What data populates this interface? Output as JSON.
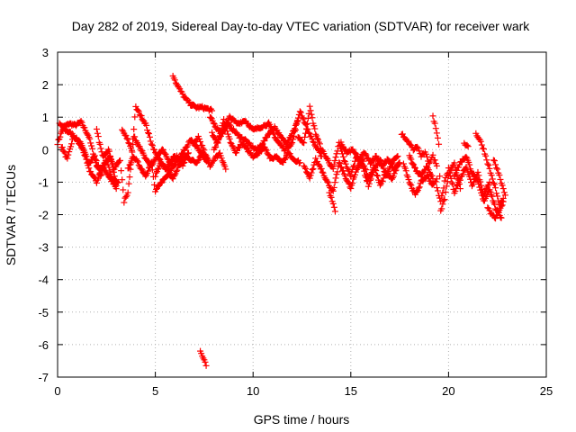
{
  "chart_data": {
    "type": "scatter",
    "title": "Day 282 of 2019, Sidereal Day-to-day VTEC variation (SDTVAR) for receiver wark",
    "xlabel": "GPS time / hours",
    "ylabel": "SDTVAR / TECUs",
    "xlim": [
      0,
      25
    ],
    "ylim": [
      -7,
      3
    ],
    "xticks": [
      "0",
      "5",
      "10",
      "15",
      "20",
      "25"
    ],
    "yticks": [
      "3",
      "2",
      "1",
      "0",
      "-1",
      "-2",
      "-3",
      "-4",
      "-5",
      "-6",
      "-7"
    ],
    "grid": true,
    "marker": "+",
    "series_color": "#ff0000",
    "segments": [
      {
        "x": [
          0.0,
          0.3,
          0.6,
          0.9,
          1.2,
          1.6,
          2.0,
          2.4,
          2.8,
          3.0
        ],
        "y": [
          0.2,
          0.7,
          0.8,
          0.75,
          0.85,
          0.4,
          -0.5,
          -0.6,
          -1.0,
          -1.2
        ]
      },
      {
        "x": [
          0.1,
          0.4,
          0.7,
          1.0,
          1.3,
          1.6,
          1.9,
          2.2,
          2.5,
          2.8,
          3.1
        ],
        "y": [
          0.8,
          0.6,
          0.5,
          0.3,
          0.0,
          -0.4,
          -0.2,
          -0.8,
          -0.3,
          -0.9,
          -1.0
        ]
      },
      {
        "x": [
          0.2,
          0.5,
          0.8,
          1.2,
          1.6,
          2.0,
          2.3,
          2.7,
          3.0
        ],
        "y": [
          0.1,
          -0.3,
          0.4,
          0.2,
          -0.6,
          -1.0,
          -0.5,
          -0.2,
          -1.1
        ]
      },
      {
        "x": [
          2.0,
          2.3,
          2.6,
          2.9,
          3.2,
          3.4,
          3.6,
          3.9,
          4.2,
          4.5,
          4.8,
          5.1,
          5.4,
          5.7,
          6.0
        ],
        "y": [
          0.6,
          -0.2,
          0.0,
          -0.6,
          -0.3,
          -1.6,
          -1.3,
          0.4,
          0.1,
          -0.3,
          -0.5,
          -0.2,
          0.0,
          -0.4,
          -0.2
        ]
      },
      {
        "x": [
          3.3,
          3.5,
          3.8,
          4.0,
          4.2,
          4.5,
          4.8,
          5.0,
          5.2,
          5.5,
          5.8,
          6.1,
          6.4,
          6.7
        ],
        "y": [
          0.6,
          0.4,
          0.0,
          1.3,
          1.1,
          0.8,
          0.2,
          -0.1,
          -0.3,
          -0.6,
          -0.4,
          -0.2,
          -0.5,
          -0.1
        ]
      },
      {
        "x": [
          3.6,
          3.9,
          4.2,
          4.5,
          4.8,
          5.0,
          5.3,
          5.6,
          5.9,
          6.2,
          6.5,
          6.8,
          7.1,
          7.4,
          7.7
        ],
        "y": [
          -0.6,
          -0.2,
          -0.5,
          -0.8,
          -0.4,
          -1.3,
          -1.0,
          -0.8,
          -0.5,
          -0.3,
          0.0,
          0.3,
          0.1,
          -0.2,
          -0.4
        ]
      },
      {
        "x": [
          5.0,
          5.3,
          5.6,
          5.9,
          6.2,
          6.5,
          6.8,
          7.1,
          7.4,
          7.7
        ],
        "y": [
          -0.8,
          -0.4,
          -0.6,
          -0.9,
          -0.5,
          -0.2,
          -0.3,
          -0.4,
          -0.1,
          -0.3
        ]
      },
      {
        "x": [
          5.9,
          6.1,
          6.3,
          6.5,
          6.8,
          7.1,
          7.4,
          7.7,
          7.9
        ],
        "y": [
          2.3,
          2.0,
          1.8,
          1.6,
          1.4,
          1.3,
          1.3,
          1.25,
          1.2
        ]
      },
      {
        "x": [
          7.0,
          7.2,
          7.4,
          7.6,
          7.8,
          8.0,
          8.3,
          8.6
        ],
        "y": [
          0.2,
          0.4,
          0.1,
          -0.2,
          -0.5,
          -0.3,
          -0.1,
          -0.6
        ]
      },
      {
        "x": [
          7.3,
          7.4,
          7.5,
          7.6
        ],
        "y": [
          -6.2,
          -6.35,
          -6.5,
          -6.65
        ]
      },
      {
        "x": [
          7.8,
          8.1,
          8.4,
          8.7,
          9.0,
          9.3,
          9.6,
          9.9,
          10.2,
          10.5,
          10.8,
          11.1,
          11.4,
          11.7,
          12.0,
          12.3
        ],
        "y": [
          1.0,
          0.7,
          0.5,
          0.8,
          0.6,
          0.4,
          0.3,
          0.1,
          0.0,
          0.2,
          0.5,
          0.7,
          0.4,
          0.2,
          0.5,
          0.9
        ]
      },
      {
        "x": [
          7.9,
          8.2,
          8.5,
          8.8,
          9.1,
          9.4,
          9.7,
          10.0,
          10.3,
          10.6,
          10.9,
          11.2,
          11.5,
          11.8,
          12.1,
          12.4
        ],
        "y": [
          0.5,
          0.2,
          0.9,
          0.3,
          -0.1,
          0.2,
          0.0,
          -0.2,
          -0.1,
          0.1,
          -0.3,
          -0.2,
          -0.4,
          -0.1,
          -0.3,
          -0.4
        ]
      },
      {
        "x": [
          8.0,
          8.4,
          8.8,
          9.2,
          9.6,
          10.0,
          10.4,
          10.8,
          11.2,
          11.6,
          12.0,
          12.4,
          12.8,
          13.2,
          13.5
        ],
        "y": [
          0.0,
          0.5,
          1.0,
          0.8,
          0.9,
          0.6,
          0.7,
          0.8,
          0.3,
          0.0,
          0.2,
          1.2,
          0.6,
          0.1,
          -0.2
        ]
      },
      {
        "x": [
          12.3,
          12.6,
          12.9,
          13.2,
          13.5,
          13.8,
          14.1,
          14.4,
          14.7,
          15.0,
          15.3,
          15.6,
          15.9,
          16.2,
          16.5,
          16.8,
          17.1,
          17.4
        ],
        "y": [
          0.4,
          0.2,
          1.3,
          0.5,
          0.0,
          -0.3,
          -0.6,
          0.2,
          -0.4,
          -0.8,
          -0.2,
          -0.5,
          -1.1,
          -0.6,
          -0.3,
          -0.8,
          -0.4,
          -0.2
        ]
      },
      {
        "x": [
          12.6,
          12.9,
          13.2,
          13.5,
          13.8,
          14.1,
          14.4,
          14.7,
          15.0,
          15.3,
          15.6,
          15.9,
          16.2,
          16.5,
          16.8,
          17.1,
          17.4
        ],
        "y": [
          -0.5,
          -0.9,
          -0.3,
          -0.6,
          -1.0,
          -1.3,
          -0.4,
          -0.8,
          -1.2,
          -0.6,
          -0.3,
          -0.9,
          -0.5,
          -1.1,
          -0.7,
          -0.9,
          -0.5
        ]
      },
      {
        "x": [
          13.9,
          14.0,
          14.1,
          14.2
        ],
        "y": [
          -1.3,
          -1.5,
          -1.7,
          -1.9
        ]
      },
      {
        "x": [
          14.5,
          14.8,
          15.1,
          15.4,
          15.7,
          16.0,
          16.3,
          16.6,
          16.9,
          17.2,
          17.5
        ],
        "y": [
          0.2,
          -0.1,
          0.0,
          -0.3,
          -0.1,
          -0.4,
          -0.2,
          -0.5,
          -0.3,
          -0.6,
          -0.4
        ]
      },
      {
        "x": [
          17.6,
          17.8,
          18.0,
          18.2,
          18.4,
          18.6,
          18.8,
          19.0,
          19.2,
          19.4
        ],
        "y": [
          0.5,
          0.3,
          0.2,
          0.0,
          0.1,
          -0.2,
          -0.1,
          -0.4,
          -0.2,
          -0.5
        ]
      },
      {
        "x": [
          17.7,
          18.0,
          18.3,
          18.6,
          18.9,
          19.2,
          19.4
        ],
        "y": [
          -0.4,
          -1.0,
          -1.4,
          -1.0,
          -0.8,
          -1.1,
          -0.9
        ]
      },
      {
        "x": [
          18.0,
          18.3,
          18.6,
          18.9,
          19.2
        ],
        "y": [
          -0.2,
          -0.6,
          -0.8,
          -0.5,
          -0.9
        ]
      },
      {
        "x": [
          19.2,
          19.3,
          19.4,
          19.5,
          19.6,
          19.8,
          20.0,
          20.3,
          20.6
        ],
        "y": [
          1.0,
          0.8,
          0.5,
          0.2,
          -1.9,
          -1.5,
          -0.8,
          -0.4,
          -1.2
        ]
      },
      {
        "x": [
          19.4,
          19.6,
          19.8,
          20.0,
          20.3,
          20.6,
          20.9,
          21.2,
          21.5,
          21.8,
          22.1
        ],
        "y": [
          -1.2,
          -1.6,
          -1.0,
          -0.6,
          -1.3,
          -0.9,
          -0.5,
          -1.1,
          -0.7,
          -1.4,
          -1.0
        ]
      },
      {
        "x": [
          20.3,
          20.6,
          20.9,
          21.2,
          21.5,
          21.8,
          22.1,
          22.4,
          22.7
        ],
        "y": [
          -0.8,
          -0.4,
          -0.2,
          -0.7,
          -1.0,
          -1.6,
          -1.2,
          -1.8,
          -2.1
        ]
      },
      {
        "x": [
          20.8,
          21.0
        ],
        "y": [
          0.2,
          0.1
        ]
      },
      {
        "x": [
          21.4,
          21.6,
          21.8,
          22.0,
          22.2,
          22.4,
          22.6,
          22.8
        ],
        "y": [
          0.5,
          0.3,
          0.0,
          -0.4,
          -0.8,
          -1.2,
          -1.7,
          -1.5
        ]
      },
      {
        "x": [
          22.0,
          22.2,
          22.4,
          22.6,
          22.8
        ],
        "y": [
          -1.8,
          -2.0,
          -2.1,
          -1.9,
          -1.6
        ]
      },
      {
        "x": [
          22.3,
          22.5,
          22.7,
          22.9
        ],
        "y": [
          -0.3,
          -0.6,
          -1.0,
          -1.4
        ]
      }
    ]
  }
}
